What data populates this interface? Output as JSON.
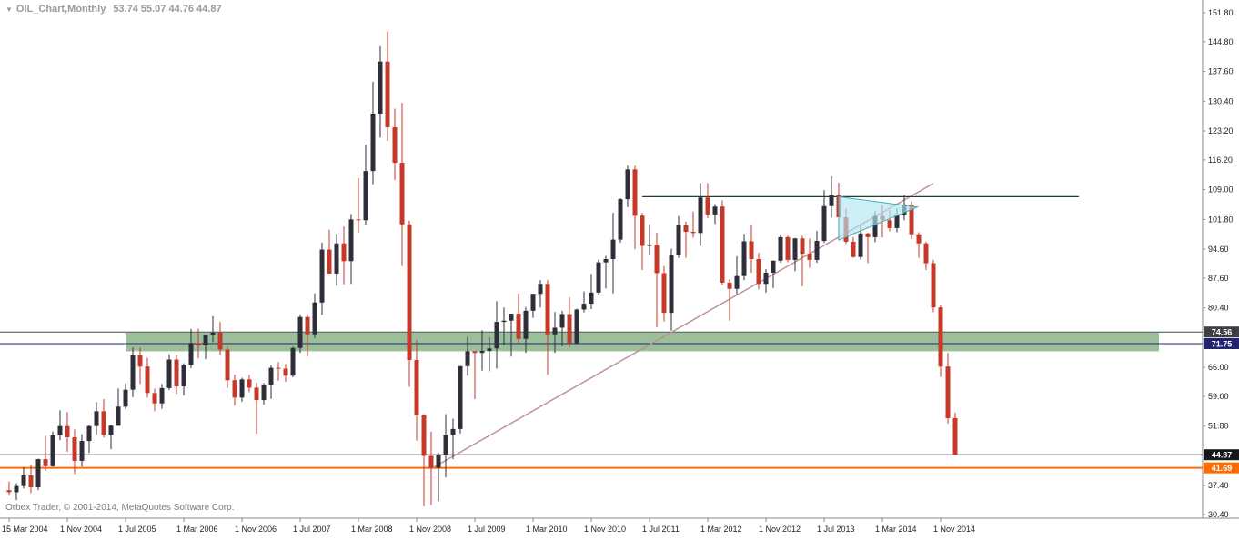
{
  "header": {
    "collapse_icon": "▼",
    "symbol_period": "OIL_Chart,Monthly",
    "ohlc_text": "53.74 55.07 44.76 44.87"
  },
  "footer": {
    "copyright": "Orbex Trader, © 2001-2014, MetaQuotes Software Corp."
  },
  "chart_data": {
    "type": "candlestick",
    "title": "OIL_Chart,Monthly",
    "current_ohlc": {
      "open": 53.74,
      "high": 55.07,
      "low": 44.76,
      "close": 44.87
    },
    "y_axis": {
      "min": 30.4,
      "max": 151.8,
      "grid": false
    },
    "colors": {
      "background": "#ffffff",
      "bull": "#2e2e38",
      "bear": "#c63828",
      "axis_text": "#1f1f1f",
      "axis_line": "#888888"
    },
    "price_axis_labels": [
      {
        "text": "151.80",
        "value": 151.8
      },
      {
        "text": "144.80",
        "value": 144.8
      },
      {
        "text": "137.60",
        "value": 137.6
      },
      {
        "text": "130.40",
        "value": 130.4
      },
      {
        "text": "123.20",
        "value": 123.2
      },
      {
        "text": "116.20",
        "value": 116.2
      },
      {
        "text": "109.00",
        "value": 109.0
      },
      {
        "text": "101.80",
        "value": 101.8
      },
      {
        "text": "94.60",
        "value": 94.6
      },
      {
        "text": "87.60",
        "value": 87.6
      },
      {
        "text": "80.40",
        "value": 80.4
      },
      {
        "text": "66.00",
        "value": 66.0
      },
      {
        "text": "59.00",
        "value": 59.0
      },
      {
        "text": "51.80",
        "value": 51.8
      },
      {
        "text": "37.40",
        "value": 37.4
      },
      {
        "text": "30.40",
        "value": 30.4
      }
    ],
    "time_axis_labels": [
      {
        "text": "15 Mar 2004",
        "index": 0
      },
      {
        "text": "1 Nov 2004",
        "index": 8
      },
      {
        "text": "1 Jul 2005",
        "index": 16
      },
      {
        "text": "1 Mar 2006",
        "index": 24
      },
      {
        "text": "1 Nov 2006",
        "index": 32
      },
      {
        "text": "1 Jul 2007",
        "index": 40
      },
      {
        "text": "1 Mar 2008",
        "index": 48
      },
      {
        "text": "1 Nov 2008",
        "index": 56
      },
      {
        "text": "1 Jul 2009",
        "index": 64
      },
      {
        "text": "1 Mar 2010",
        "index": 72
      },
      {
        "text": "1 Nov 2010",
        "index": 80
      },
      {
        "text": "1 Jul 2011",
        "index": 88
      },
      {
        "text": "1 Mar 2012",
        "index": 96
      },
      {
        "text": "1 Nov 2012",
        "index": 104
      },
      {
        "text": "1 Jul 2013",
        "index": 112
      },
      {
        "text": "1 Mar 2014",
        "index": 120
      },
      {
        "text": "1 Nov 2014",
        "index": 128
      }
    ],
    "overlays": {
      "support_zone": {
        "price_top": 74.4,
        "price_bottom": 69.9,
        "from_index": 16,
        "to_index": 158,
        "color": "#9cbf9b"
      },
      "levels": [
        {
          "label": "74.56",
          "price": 74.56,
          "line_color": "#44444c",
          "width": 1,
          "badge_bg": "#3f3f46",
          "badge_fg": "#ffffff"
        },
        {
          "label": "71.75",
          "price": 71.75,
          "line_color": "#23236b",
          "width": 1,
          "badge_bg": "#23236b",
          "badge_fg": "#ffffff"
        },
        {
          "label": "44.87",
          "price": 44.87,
          "line_color": "#17171c",
          "width": 1,
          "badge_bg": "#17171c",
          "badge_fg": "#ffffff"
        },
        {
          "label": "41.69",
          "price": 41.69,
          "line_color": "#ff6b00",
          "width": 2,
          "badge_bg": "#ff6b00",
          "badge_fg": "#ffffff"
        }
      ],
      "trendline": {
        "from_index": 58,
        "from_price": 41.5,
        "to_index": 127,
        "to_price": 110.5,
        "color": "#bd8e8e"
      },
      "resistance_line": {
        "from_index": 87,
        "to_index": 147,
        "price": 107.3,
        "color": "#1e3f34"
      },
      "pennant": {
        "points": [
          [
            114,
            107.3
          ],
          [
            124.8,
            104.8
          ],
          [
            114,
            96.8
          ]
        ],
        "fill": "rgba(178,229,240,0.65)",
        "stroke": "#43aeb8"
      }
    },
    "candles": [
      [
        "2004-03",
        36.3,
        38.4,
        35.0,
        35.8
      ],
      [
        "2004-04",
        35.8,
        38.0,
        33.9,
        37.3
      ],
      [
        "2004-05",
        37.3,
        41.8,
        36.7,
        39.9
      ],
      [
        "2004-06",
        39.9,
        42.4,
        35.6,
        37.0
      ],
      [
        "2004-07",
        37.0,
        43.9,
        36.3,
        43.8
      ],
      [
        "2004-08",
        43.8,
        49.4,
        41.0,
        42.1
      ],
      [
        "2004-09",
        42.1,
        50.5,
        41.9,
        49.6
      ],
      [
        "2004-10",
        49.6,
        55.6,
        48.4,
        51.8
      ],
      [
        "2004-11",
        51.8,
        55.2,
        45.6,
        49.1
      ],
      [
        "2004-12",
        49.1,
        51.0,
        40.2,
        43.4
      ],
      [
        "2005-01",
        43.4,
        49.8,
        42.0,
        48.2
      ],
      [
        "2005-02",
        48.2,
        52.0,
        45.3,
        51.8
      ],
      [
        "2005-03",
        51.8,
        57.6,
        49.8,
        55.4
      ],
      [
        "2005-04",
        55.4,
        58.3,
        49.0,
        49.7
      ],
      [
        "2005-05",
        49.7,
        52.1,
        46.2,
        51.9
      ],
      [
        "2005-06",
        51.9,
        60.9,
        51.8,
        56.5
      ],
      [
        "2005-07",
        56.5,
        62.1,
        56.0,
        60.6
      ],
      [
        "2005-08",
        60.6,
        70.8,
        58.8,
        68.9
      ],
      [
        "2005-09",
        68.9,
        70.8,
        62.0,
        66.2
      ],
      [
        "2005-10",
        66.2,
        68.3,
        58.7,
        59.8
      ],
      [
        "2005-11",
        59.8,
        60.9,
        55.4,
        57.3
      ],
      [
        "2005-12",
        57.3,
        62.0,
        56.0,
        61.0
      ],
      [
        "2006-01",
        61.0,
        69.2,
        60.5,
        67.9
      ],
      [
        "2006-02",
        67.9,
        69.0,
        59.6,
        61.4
      ],
      [
        "2006-03",
        61.4,
        67.0,
        59.2,
        66.6
      ],
      [
        "2006-04",
        66.6,
        75.3,
        65.8,
        71.9
      ],
      [
        "2006-05",
        71.9,
        75.4,
        68.2,
        71.3
      ],
      [
        "2006-06",
        71.3,
        74.0,
        68.0,
        73.9
      ],
      [
        "2006-07",
        73.9,
        78.4,
        72.1,
        74.4
      ],
      [
        "2006-08",
        74.4,
        77.0,
        69.0,
        70.3
      ],
      [
        "2006-09",
        70.3,
        71.0,
        61.0,
        62.9
      ],
      [
        "2006-10",
        62.9,
        64.3,
        56.8,
        58.7
      ],
      [
        "2006-11",
        58.7,
        63.5,
        57.7,
        63.1
      ],
      [
        "2006-12",
        63.1,
        64.2,
        60.0,
        61.1
      ],
      [
        "2007-01",
        61.1,
        62.3,
        49.9,
        58.1
      ],
      [
        "2007-02",
        58.1,
        62.2,
        57.0,
        61.8
      ],
      [
        "2007-03",
        61.8,
        66.5,
        58.4,
        65.9
      ],
      [
        "2007-04",
        65.9,
        67.3,
        62.8,
        65.7
      ],
      [
        "2007-05",
        65.7,
        66.8,
        62.5,
        64.0
      ],
      [
        "2007-06",
        64.0,
        71.0,
        63.6,
        70.7
      ],
      [
        "2007-07",
        70.7,
        78.8,
        69.5,
        78.2
      ],
      [
        "2007-08",
        78.2,
        78.8,
        68.6,
        74.0
      ],
      [
        "2007-09",
        74.0,
        83.9,
        73.1,
        81.7
      ],
      [
        "2007-10",
        81.7,
        96.2,
        78.7,
        94.5
      ],
      [
        "2007-11",
        94.5,
        99.3,
        88.7,
        88.7
      ],
      [
        "2007-12",
        88.7,
        98.3,
        85.8,
        96.0
      ],
      [
        "2008-01",
        96.0,
        100.1,
        86.1,
        91.7
      ],
      [
        "2008-02",
        91.7,
        103.1,
        86.2,
        101.8
      ],
      [
        "2008-03",
        101.8,
        111.8,
        98.6,
        101.6
      ],
      [
        "2008-04",
        101.6,
        119.9,
        100.5,
        113.5
      ],
      [
        "2008-05",
        113.5,
        135.1,
        110.3,
        127.4
      ],
      [
        "2008-06",
        127.4,
        143.7,
        121.6,
        140.0
      ],
      [
        "2008-07",
        140.0,
        147.3,
        120.8,
        124.1
      ],
      [
        "2008-08",
        124.1,
        128.6,
        111.3,
        115.5
      ],
      [
        "2008-09",
        115.5,
        130.0,
        90.5,
        100.6
      ],
      [
        "2008-10",
        100.6,
        101.5,
        61.3,
        67.8
      ],
      [
        "2008-11",
        67.8,
        72.6,
        48.3,
        54.4
      ],
      [
        "2008-12",
        54.4,
        54.7,
        32.4,
        44.6
      ],
      [
        "2009-01",
        44.6,
        50.5,
        32.7,
        41.7
      ],
      [
        "2009-02",
        41.7,
        45.3,
        33.6,
        44.8
      ],
      [
        "2009-03",
        44.8,
        54.7,
        39.4,
        49.7
      ],
      [
        "2009-04",
        49.7,
        53.6,
        43.8,
        51.1
      ],
      [
        "2009-05",
        51.1,
        66.3,
        50.0,
        66.3
      ],
      [
        "2009-06",
        66.3,
        73.4,
        64.0,
        69.9
      ],
      [
        "2009-07",
        69.9,
        70.0,
        58.3,
        69.5
      ],
      [
        "2009-08",
        69.5,
        75.0,
        65.2,
        70.0
      ],
      [
        "2009-09",
        70.0,
        73.2,
        65.1,
        70.6
      ],
      [
        "2009-10",
        70.6,
        82.0,
        65.7,
        77.0
      ],
      [
        "2009-11",
        77.0,
        80.5,
        71.4,
        77.3
      ],
      [
        "2009-12",
        77.3,
        79.0,
        68.6,
        79.0
      ],
      [
        "2010-01",
        79.0,
        83.9,
        72.0,
        72.9
      ],
      [
        "2010-02",
        72.9,
        80.6,
        69.5,
        79.7
      ],
      [
        "2010-03",
        79.7,
        83.8,
        78.0,
        83.8
      ],
      [
        "2010-04",
        83.8,
        87.1,
        80.5,
        86.2
      ],
      [
        "2010-05",
        86.2,
        87.2,
        64.2,
        74.0
      ],
      [
        "2010-06",
        74.0,
        79.4,
        69.5,
        75.6
      ],
      [
        "2010-07",
        75.6,
        79.7,
        71.1,
        78.9
      ],
      [
        "2010-08",
        78.9,
        82.9,
        70.8,
        71.9
      ],
      [
        "2010-09",
        71.9,
        80.2,
        71.6,
        80.0
      ],
      [
        "2010-10",
        80.0,
        84.4,
        79.3,
        81.4
      ],
      [
        "2010-11",
        81.4,
        88.6,
        80.1,
        84.1
      ],
      [
        "2010-12",
        84.1,
        92.1,
        83.6,
        91.4
      ],
      [
        "2011-01",
        91.4,
        93.0,
        85.1,
        92.2
      ],
      [
        "2011-02",
        92.2,
        103.4,
        83.9,
        96.9
      ],
      [
        "2011-03",
        96.9,
        106.9,
        96.2,
        106.7
      ],
      [
        "2011-04",
        106.7,
        114.8,
        104.8,
        113.9
      ],
      [
        "2011-05",
        113.9,
        114.8,
        94.6,
        102.7
      ],
      [
        "2011-06",
        102.7,
        103.4,
        89.6,
        95.4
      ],
      [
        "2011-07",
        95.4,
        100.6,
        93.3,
        95.7
      ],
      [
        "2011-08",
        95.7,
        98.6,
        75.7,
        88.8
      ],
      [
        "2011-09",
        88.8,
        90.5,
        77.1,
        79.2
      ],
      [
        "2011-10",
        79.2,
        94.7,
        74.9,
        93.2
      ],
      [
        "2011-11",
        93.2,
        102.6,
        92.5,
        100.4
      ],
      [
        "2011-12",
        100.4,
        101.3,
        92.5,
        98.8
      ],
      [
        "2012-01",
        98.8,
        103.7,
        97.4,
        98.5
      ],
      [
        "2012-02",
        98.5,
        110.6,
        95.4,
        107.1
      ],
      [
        "2012-03",
        107.1,
        110.6,
        102.1,
        103.0
      ],
      [
        "2012-04",
        103.0,
        105.5,
        100.7,
        104.9
      ],
      [
        "2012-05",
        104.9,
        106.4,
        85.9,
        86.5
      ],
      [
        "2012-06",
        86.5,
        87.3,
        77.3,
        85.0
      ],
      [
        "2012-07",
        85.0,
        92.9,
        83.7,
        88.1
      ],
      [
        "2012-08",
        88.1,
        98.3,
        87.1,
        96.5
      ],
      [
        "2012-09",
        96.5,
        100.4,
        88.9,
        92.2
      ],
      [
        "2012-10",
        92.2,
        93.7,
        84.9,
        86.2
      ],
      [
        "2012-11",
        86.2,
        89.8,
        84.1,
        88.9
      ],
      [
        "2012-12",
        88.9,
        91.9,
        85.2,
        91.8
      ],
      [
        "2013-01",
        91.8,
        98.2,
        91.3,
        97.5
      ],
      [
        "2013-02",
        97.5,
        98.1,
        91.4,
        92.0
      ],
      [
        "2013-03",
        92.0,
        97.3,
        89.3,
        97.2
      ],
      [
        "2013-04",
        97.2,
        97.8,
        85.6,
        93.5
      ],
      [
        "2013-05",
        93.5,
        97.2,
        90.1,
        92.0
      ],
      [
        "2013-06",
        92.0,
        99.0,
        91.3,
        96.6
      ],
      [
        "2013-07",
        96.6,
        108.9,
        96.1,
        105.0
      ],
      [
        "2013-08",
        105.0,
        112.2,
        102.2,
        107.7
      ],
      [
        "2013-09",
        107.7,
        110.7,
        101.1,
        102.3
      ],
      [
        "2013-10",
        102.3,
        104.4,
        95.9,
        96.4
      ],
      [
        "2013-11",
        96.4,
        97.5,
        92.5,
        92.7
      ],
      [
        "2013-12",
        92.7,
        100.8,
        92.1,
        98.4
      ],
      [
        "2014-01",
        98.4,
        98.6,
        91.2,
        97.5
      ],
      [
        "2014-02",
        97.5,
        103.8,
        96.3,
        102.6
      ],
      [
        "2014-03",
        102.6,
        105.2,
        97.4,
        101.6
      ],
      [
        "2014-04",
        101.6,
        104.1,
        98.9,
        99.7
      ],
      [
        "2014-05",
        99.7,
        104.5,
        98.7,
        103.0
      ],
      [
        "2014-06",
        103.0,
        107.7,
        101.6,
        105.4
      ],
      [
        "2014-07",
        105.4,
        106.1,
        97.1,
        98.2
      ],
      [
        "2014-08",
        98.2,
        98.7,
        92.5,
        96.0
      ],
      [
        "2014-09",
        96.0,
        96.4,
        89.6,
        91.2
      ],
      [
        "2014-10",
        91.2,
        92.0,
        79.4,
        80.5
      ],
      [
        "2014-11",
        80.5,
        81.0,
        63.7,
        66.2
      ],
      [
        "2014-12",
        66.2,
        69.5,
        52.4,
        53.7
      ],
      [
        "2015-01",
        53.74,
        55.07,
        44.76,
        44.87
      ]
    ]
  }
}
